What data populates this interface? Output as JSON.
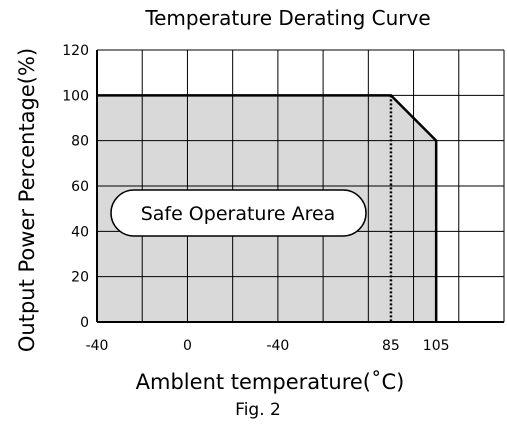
{
  "chart_data": {
    "type": "area",
    "title": "Temperature Derating Curve",
    "xlabel": "Amblent temperature(˚C)",
    "ylabel": "Output Power Percentage(%)",
    "caption": "Fig. 2",
    "x_tick_labels": [
      "-40",
      "0",
      "-40",
      "85",
      "105"
    ],
    "y_ticks": [
      0,
      20,
      40,
      60,
      80,
      100,
      120
    ],
    "ylim": [
      0,
      120
    ],
    "x_categories_count": 9,
    "series": [
      {
        "x": [
          "-40",
          "85",
          "105"
        ],
        "values": [
          100,
          100,
          80
        ]
      }
    ],
    "annotations": [
      {
        "text": "Safe Operature Area"
      }
    ],
    "reference_lines": [
      {
        "x": "85",
        "style": "dotted"
      }
    ],
    "grid": true,
    "colors": {
      "area_fill": "#d9d9d9",
      "line": "#000000",
      "grid": "#000000"
    }
  }
}
